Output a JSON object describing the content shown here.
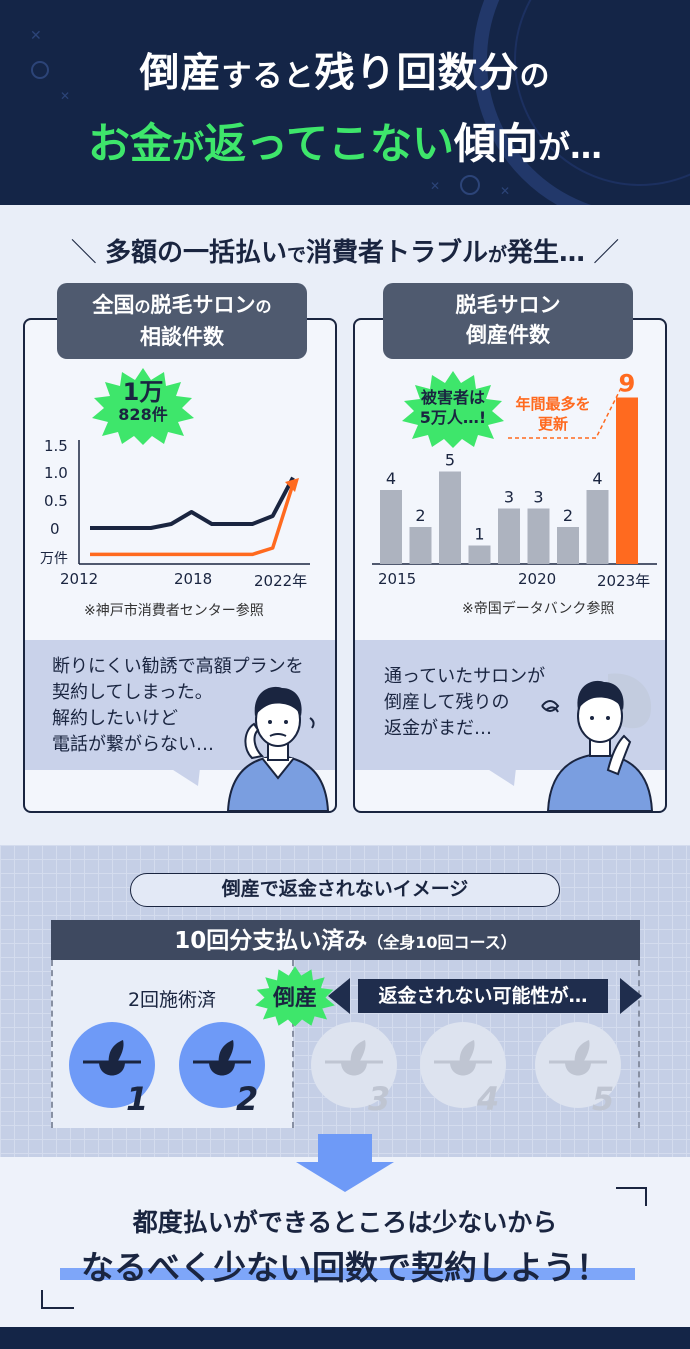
{
  "header": {
    "line1": [
      {
        "text": "倒産",
        "size": "big"
      },
      {
        "text": "すると",
        "size": "small"
      },
      {
        "text": "残り回数分",
        "size": "big"
      },
      {
        "text": "の",
        "size": "small"
      }
    ],
    "line2": [
      {
        "text": "お金",
        "color": "green",
        "size": "big"
      },
      {
        "text": "が",
        "color": "green",
        "size": "small"
      },
      {
        "text": "返ってこない",
        "color": "green",
        "size": "big"
      },
      {
        "text": "傾向",
        "color": "white",
        "size": "big"
      },
      {
        "text": "が…",
        "color": "white",
        "size": "small"
      }
    ]
  },
  "section1": {
    "title_a": "多額の一括払い",
    "title_b": "で",
    "title_c": "消費者トラブル",
    "title_d": "が",
    "title_e": "発生…",
    "left_card": {
      "label_line1_a": "全国",
      "label_line1_b": "の",
      "label_line1_c": "脱毛サロン",
      "label_line1_d": "の",
      "label_line2": "相談件数",
      "burst_line1": "1万",
      "burst_line2": "828件",
      "y_ticks": [
        "1.5",
        "1.0",
        "0.5",
        "0"
      ],
      "y_unit": "万件",
      "x_ticks": [
        "2012",
        "2018",
        "2022年"
      ],
      "source": "※神戸市消費者センター参照",
      "bubble": [
        "断りにくい勧誘で高額プランを",
        "契約してしまった。",
        "解約したいけど",
        "電話が繋がらない…"
      ]
    },
    "right_card": {
      "label_line1": "脱毛サロン",
      "label_line2": "倒産件数",
      "burst_line1": "被害者は",
      "burst_line2": "5万人…!",
      "annot_line1": "年間最多を",
      "annot_line2": "更新",
      "x_ticks": [
        "2015",
        "2020",
        "2023年"
      ],
      "source": "※帝国データバンク参照",
      "bubble": [
        "通っていたサロンが",
        "倒産して残りの",
        "返金がまだ…"
      ]
    }
  },
  "chart_data": [
    {
      "type": "line",
      "title": "全国の脱毛サロンの相談件数",
      "ylabel": "万件",
      "ylim": [
        0,
        1.5
      ],
      "x": [
        2012,
        2013,
        2014,
        2015,
        2016,
        2017,
        2018,
        2019,
        2020,
        2021,
        2022
      ],
      "series": [
        {
          "values": [
            0.45,
            0.45,
            0.45,
            0.45,
            0.5,
            0.65,
            0.5,
            0.5,
            0.5,
            0.6,
            1.08
          ]
        },
        {
          "values": [
            0.12,
            0.12,
            0.12,
            0.12,
            0.12,
            0.12,
            0.12,
            0.12,
            0.12,
            0.2,
            1.0
          ]
        }
      ]
    },
    {
      "type": "bar",
      "title": "脱毛サロン倒産件数",
      "categories": [
        "2015",
        "2016",
        "2017",
        "2018",
        "2019",
        "2020",
        "2021",
        "2022",
        "2023年"
      ],
      "values": [
        4,
        2,
        5,
        1,
        3,
        3,
        2,
        4,
        9
      ],
      "highlight_color": "#ff6a1f",
      "bar_color": "#adb3bf"
    }
  ],
  "section2": {
    "pill": "倒産で返金されないイメージ",
    "paid_a": "10回分支払い済み",
    "paid_b": "（全身10回コース）",
    "done_label": "2回施術済",
    "burst": "倒産",
    "arrow_text": "返金されない可能性が…",
    "circles": [
      {
        "n": "1",
        "state": "done"
      },
      {
        "n": "2",
        "state": "done"
      },
      {
        "n": "3",
        "state": "pending"
      },
      {
        "n": "4",
        "state": "pending"
      },
      {
        "n": "5",
        "state": "pending"
      }
    ]
  },
  "section3": {
    "line1": "都度払いができるところは少ないから",
    "line2": "なるべく少ない回数で契約しよう！"
  },
  "colors": {
    "navy": "#142547",
    "green": "#3ee66b",
    "orange": "#ff6a1f",
    "blue": "#6e9af7"
  }
}
